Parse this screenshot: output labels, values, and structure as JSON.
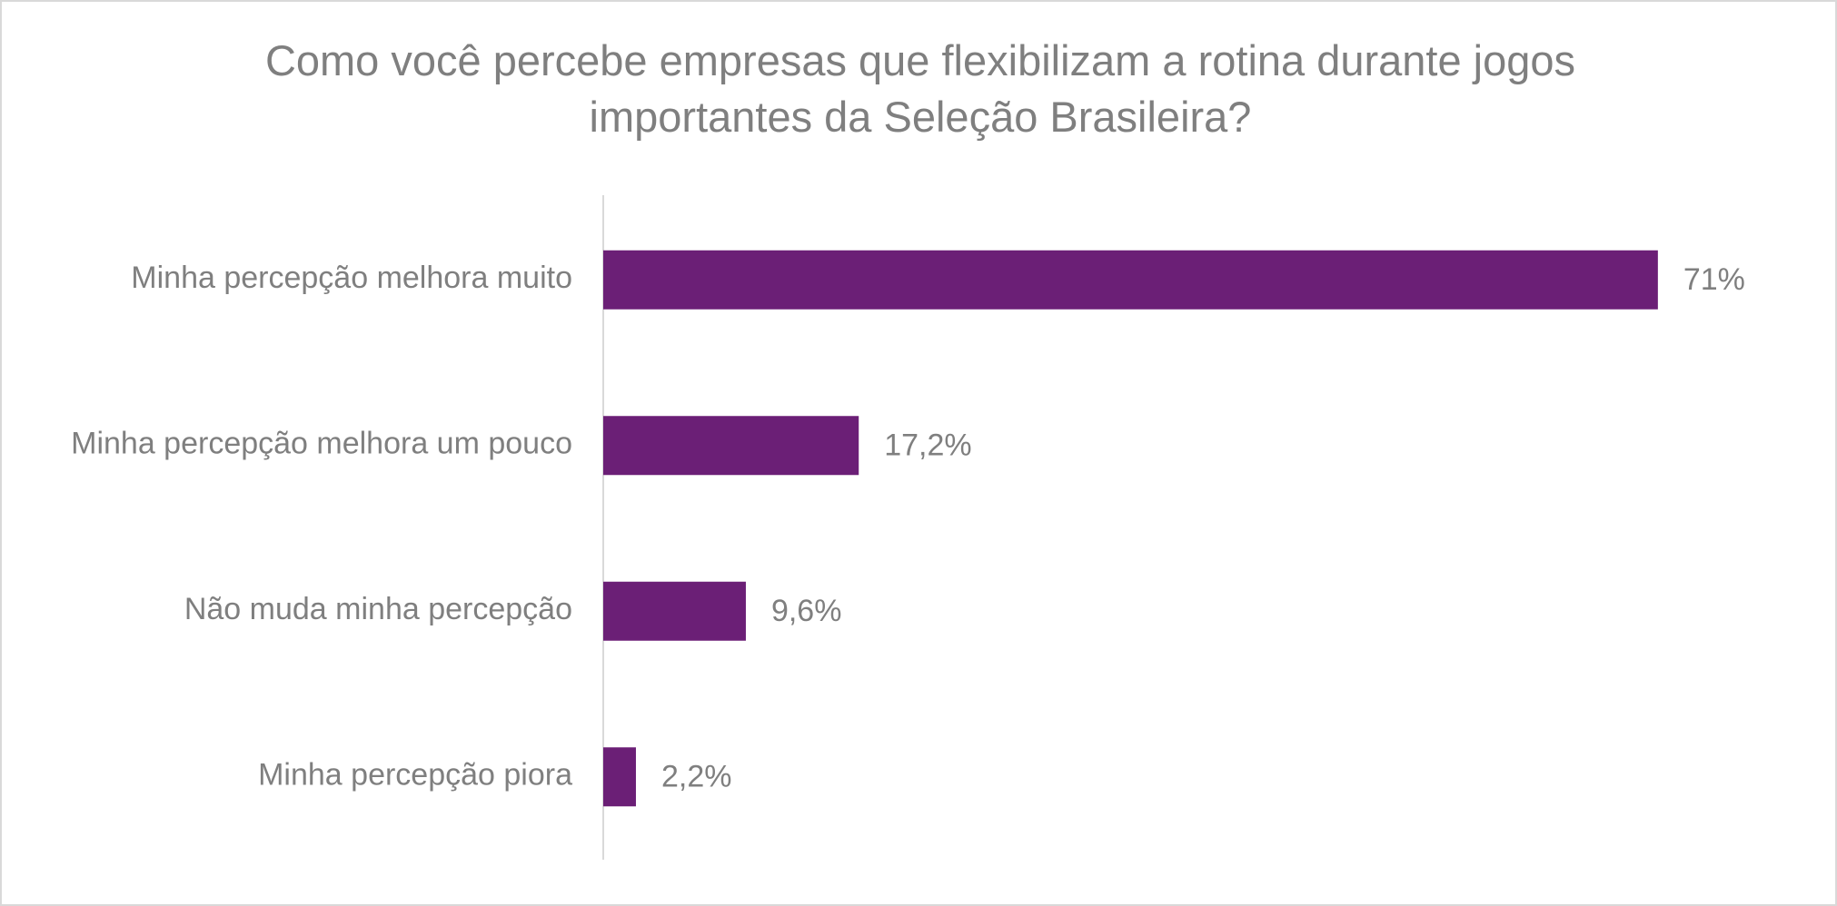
{
  "chart_data": {
    "type": "bar",
    "orientation": "horizontal",
    "title": "Como você percebe empresas que flexibilizam a rotina durante jogos importantes da Seleção Brasileira?",
    "categories": [
      "Minha percepção melhora muito",
      "Minha percepção melhora um pouco",
      "Não muda minha percepção",
      "Minha percepção piora"
    ],
    "values": [
      71,
      17.2,
      9.6,
      2.2
    ],
    "value_labels": [
      "71%",
      "17,2%",
      "9,6%",
      "2,2%"
    ],
    "color": "#6b1f76",
    "xlim": [
      0,
      80
    ]
  }
}
